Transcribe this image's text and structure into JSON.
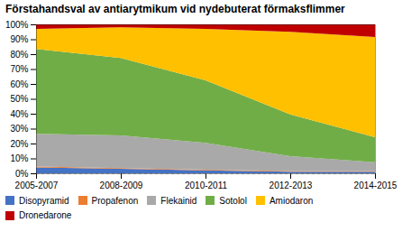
{
  "chart_data": {
    "type": "area",
    "stacked": true,
    "title": "Förstahandsval av antiarytmikum vid nydebuterat förmaksflimmer",
    "categories": [
      "2005-2007",
      "2008-2009",
      "2010-2011",
      "2012-2013",
      "2014-2015"
    ],
    "series": [
      {
        "name": "Disopyramid",
        "color": "#4472C4",
        "values": [
          0.04,
          0.03,
          0.02,
          0.01,
          0.009900990099009901
        ]
      },
      {
        "name": "Propafenon",
        "color": "#ED7D31",
        "values": [
          0.005,
          0.005,
          0.005,
          0.005,
          0.0049504950495049506
        ]
      },
      {
        "name": "Flekainid",
        "color": "#A9A9A9",
        "values": [
          0.22,
          0.22,
          0.18,
          0.1,
          0.0594059405940594
        ]
      },
      {
        "name": "Sotolol",
        "color": "#70AD47",
        "values": [
          0.57,
          0.52,
          0.42,
          0.28,
          0.16831683168316833
        ]
      },
      {
        "name": "Amiodaron",
        "color": "#FFC000",
        "values": [
          0.135,
          0.205,
          0.345,
          0.555,
          0.6732673267326733
        ]
      },
      {
        "name": "Dronedarone",
        "color": "#C00000",
        "values": [
          0.03,
          0.02,
          0.03,
          0.05,
          0.08415841584158416
        ]
      }
    ],
    "ylim": [
      0,
      1.0
    ],
    "yticks": [
      {
        "value": 0,
        "label": "0%"
      },
      {
        "value": 0.1,
        "label": "10%"
      },
      {
        "value": 0.2,
        "label": "20%"
      },
      {
        "value": 0.3,
        "label": "30%"
      },
      {
        "value": 0.4,
        "label": "40%"
      },
      {
        "value": 0.5,
        "label": "50%"
      },
      {
        "value": 0.6,
        "label": "60%"
      },
      {
        "value": 0.7,
        "label": "70%"
      },
      {
        "value": 0.8,
        "label": "80%"
      },
      {
        "value": 0.9,
        "label": "90%"
      },
      {
        "value": 1.0,
        "label": "100%"
      }
    ],
    "grid": true,
    "legend": "bottom"
  }
}
